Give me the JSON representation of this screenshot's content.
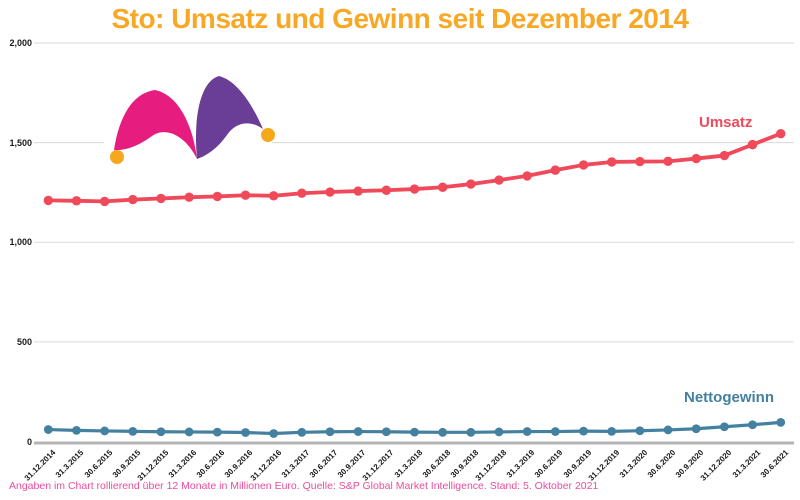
{
  "title": "Sto: Umsatz und Gewinn seit Dezember 2014",
  "footer": "Angaben im Chart rollierend über 12 Monate in Millionen Euro. Quelle: S&P Global Market Intelligence. Stand: 5. Oktober 2021",
  "colors": {
    "title": "#F9A826",
    "umsatz": "#F0495A",
    "nettogewinn": "#44809F",
    "footer": "#EC4C9C",
    "gridline": "#DADADA",
    "axis_line": "#B4B4B4",
    "tick_text": "#1a1a1a",
    "logo_pink": "#E61D7E",
    "logo_purple": "#6A3D96",
    "logo_orange": "#F6A81C"
  },
  "chart_data": {
    "type": "line",
    "title": "Sto: Umsatz und Gewinn seit Dezember 2014",
    "xlabel": "",
    "ylabel": "",
    "units": "Millionen Euro, rollierend über 12 Monate",
    "grid": true,
    "ylim": [
      0,
      2000
    ],
    "yticks": [
      0,
      500,
      1000,
      1500,
      2000
    ],
    "ytick_labels": [
      "0",
      "500",
      "1,000",
      "1,500",
      "2,000"
    ],
    "categories": [
      "31.12.2014",
      "31.3.2015",
      "30.6.2015",
      "30.9.2015",
      "31.12.2015",
      "31.3.2016",
      "30.6.2016",
      "30.9.2016",
      "31.12.2016",
      "31.3.2017",
      "30.6.2017",
      "30.9.2017",
      "31.12.2017",
      "31.3.2018",
      "30.6.2018",
      "30.9.2018",
      "31.12.2018",
      "31.3.2019",
      "30.6.2019",
      "30.9.2019",
      "31.12.2019",
      "31.3.2020",
      "30.6.2020",
      "30.9.2020",
      "31.12.2020",
      "31.3.2021",
      "30.6.2021"
    ],
    "series": [
      {
        "name": "Umsatz",
        "color": "#F0495A",
        "values": [
          1210,
          1208,
          1205,
          1214,
          1220,
          1226,
          1230,
          1236,
          1233,
          1246,
          1252,
          1257,
          1261,
          1267,
          1276,
          1292,
          1312,
          1333,
          1362,
          1388,
          1403,
          1405,
          1406,
          1420,
          1435,
          1490,
          1545
        ]
      },
      {
        "name": "Nettogewinn",
        "color": "#44809F",
        "values": [
          60,
          56,
          53,
          51,
          49,
          48,
          47,
          45,
          40,
          46,
          49,
          50,
          49,
          47,
          46,
          46,
          48,
          50,
          50,
          52,
          51,
          54,
          58,
          64,
          74,
          84,
          96
        ]
      }
    ],
    "legend_position": "inline-right"
  }
}
